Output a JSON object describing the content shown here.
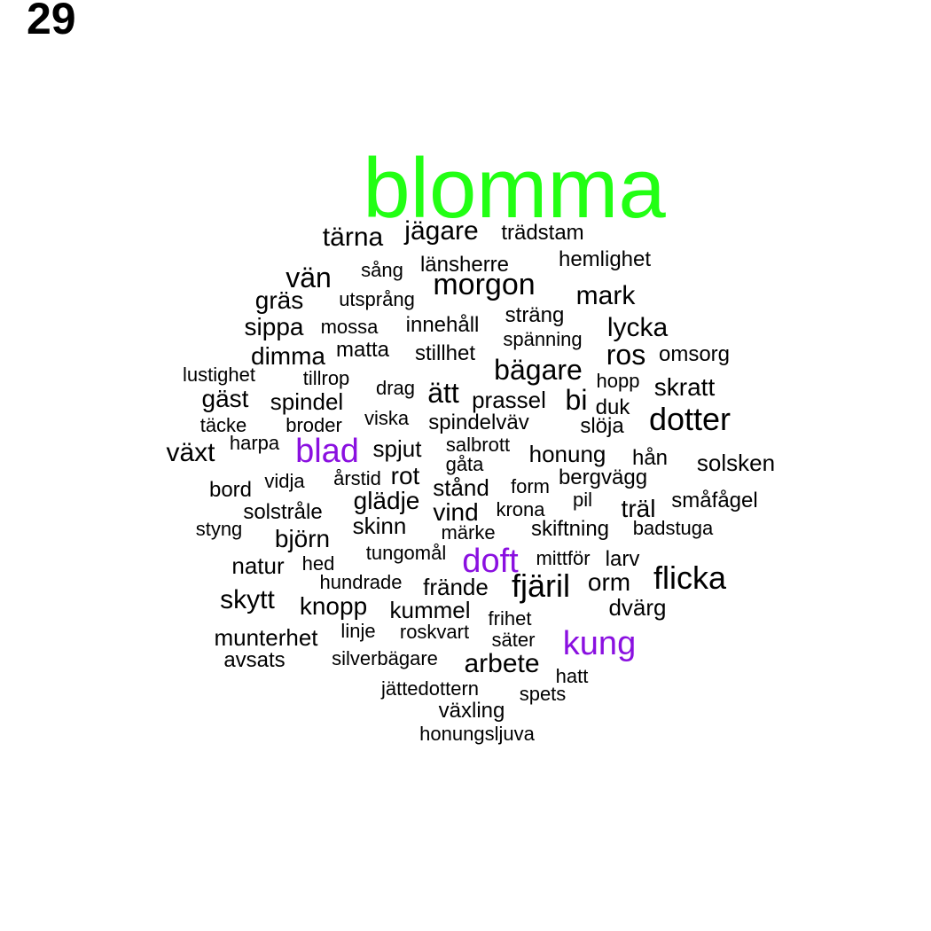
{
  "page_number": "29",
  "colors": {
    "primary": "#22ff14",
    "secondary": "#8a10e0",
    "default": "#000000"
  },
  "words": [
    {
      "text": "blomma",
      "tier": "primary"
    },
    {
      "text": "blad",
      "tier": "secondary"
    },
    {
      "text": "doft",
      "tier": "secondary"
    },
    {
      "text": "kung",
      "tier": "secondary"
    },
    {
      "text": "tärna",
      "tier": "default"
    },
    {
      "text": "jägare",
      "tier": "default"
    },
    {
      "text": "trädstam",
      "tier": "default"
    },
    {
      "text": "hemlighet",
      "tier": "default"
    },
    {
      "text": "sång",
      "tier": "default"
    },
    {
      "text": "länsherre",
      "tier": "default"
    },
    {
      "text": "vän",
      "tier": "default"
    },
    {
      "text": "morgon",
      "tier": "default"
    },
    {
      "text": "gräs",
      "tier": "default"
    },
    {
      "text": "utsprång",
      "tier": "default"
    },
    {
      "text": "mark",
      "tier": "default"
    },
    {
      "text": "sträng",
      "tier": "default"
    },
    {
      "text": "sippa",
      "tier": "default"
    },
    {
      "text": "mossa",
      "tier": "default"
    },
    {
      "text": "innehåll",
      "tier": "default"
    },
    {
      "text": "lycka",
      "tier": "default"
    },
    {
      "text": "spänning",
      "tier": "default"
    },
    {
      "text": "dimma",
      "tier": "default"
    },
    {
      "text": "matta",
      "tier": "default"
    },
    {
      "text": "stillhet",
      "tier": "default"
    },
    {
      "text": "ros",
      "tier": "default"
    },
    {
      "text": "omsorg",
      "tier": "default"
    },
    {
      "text": "lustighet",
      "tier": "default"
    },
    {
      "text": "tillrop",
      "tier": "default"
    },
    {
      "text": "bägare",
      "tier": "default"
    },
    {
      "text": "hopp",
      "tier": "default"
    },
    {
      "text": "drag",
      "tier": "default"
    },
    {
      "text": "ätt",
      "tier": "default"
    },
    {
      "text": "skratt",
      "tier": "default"
    },
    {
      "text": "gäst",
      "tier": "default"
    },
    {
      "text": "spindel",
      "tier": "default"
    },
    {
      "text": "prassel",
      "tier": "default"
    },
    {
      "text": "bi",
      "tier": "default"
    },
    {
      "text": "duk",
      "tier": "default"
    },
    {
      "text": "viska",
      "tier": "default"
    },
    {
      "text": "dotter",
      "tier": "default"
    },
    {
      "text": "täcke",
      "tier": "default"
    },
    {
      "text": "broder",
      "tier": "default"
    },
    {
      "text": "spindelväv",
      "tier": "default"
    },
    {
      "text": "slöja",
      "tier": "default"
    },
    {
      "text": "harpa",
      "tier": "default"
    },
    {
      "text": "växt",
      "tier": "default"
    },
    {
      "text": "spjut",
      "tier": "default"
    },
    {
      "text": "salbrott",
      "tier": "default"
    },
    {
      "text": "honung",
      "tier": "default"
    },
    {
      "text": "hån",
      "tier": "default"
    },
    {
      "text": "solsken",
      "tier": "default"
    },
    {
      "text": "gåta",
      "tier": "default"
    },
    {
      "text": "vidja",
      "tier": "default"
    },
    {
      "text": "årstid",
      "tier": "default"
    },
    {
      "text": "rot",
      "tier": "default"
    },
    {
      "text": "bergvägg",
      "tier": "default"
    },
    {
      "text": "bord",
      "tier": "default"
    },
    {
      "text": "stånd",
      "tier": "default"
    },
    {
      "text": "form",
      "tier": "default"
    },
    {
      "text": "glädje",
      "tier": "default"
    },
    {
      "text": "pil",
      "tier": "default"
    },
    {
      "text": "småfågel",
      "tier": "default"
    },
    {
      "text": "vind",
      "tier": "default"
    },
    {
      "text": "krona",
      "tier": "default"
    },
    {
      "text": "träl",
      "tier": "default"
    },
    {
      "text": "solstråle",
      "tier": "default"
    },
    {
      "text": "skinn",
      "tier": "default"
    },
    {
      "text": "styng",
      "tier": "default"
    },
    {
      "text": "märke",
      "tier": "default"
    },
    {
      "text": "skiftning",
      "tier": "default"
    },
    {
      "text": "badstuga",
      "tier": "default"
    },
    {
      "text": "björn",
      "tier": "default"
    },
    {
      "text": "tungomål",
      "tier": "default"
    },
    {
      "text": "mittför",
      "tier": "default"
    },
    {
      "text": "larv",
      "tier": "default"
    },
    {
      "text": "natur",
      "tier": "default"
    },
    {
      "text": "hed",
      "tier": "default"
    },
    {
      "text": "flicka",
      "tier": "default"
    },
    {
      "text": "hundrade",
      "tier": "default"
    },
    {
      "text": "frände",
      "tier": "default"
    },
    {
      "text": "fjäril",
      "tier": "default"
    },
    {
      "text": "orm",
      "tier": "default"
    },
    {
      "text": "skytt",
      "tier": "default"
    },
    {
      "text": "knopp",
      "tier": "default"
    },
    {
      "text": "kummel",
      "tier": "default"
    },
    {
      "text": "dvärg",
      "tier": "default"
    },
    {
      "text": "frihet",
      "tier": "default"
    },
    {
      "text": "munterhet",
      "tier": "default"
    },
    {
      "text": "linje",
      "tier": "default"
    },
    {
      "text": "roskvart",
      "tier": "default"
    },
    {
      "text": "säter",
      "tier": "default"
    },
    {
      "text": "avsats",
      "tier": "default"
    },
    {
      "text": "silverbägare",
      "tier": "default"
    },
    {
      "text": "arbete",
      "tier": "default"
    },
    {
      "text": "hatt",
      "tier": "default"
    },
    {
      "text": "jättedottern",
      "tier": "default"
    },
    {
      "text": "spets",
      "tier": "default"
    },
    {
      "text": "växling",
      "tier": "default"
    },
    {
      "text": "honungsljuva",
      "tier": "default"
    }
  ]
}
